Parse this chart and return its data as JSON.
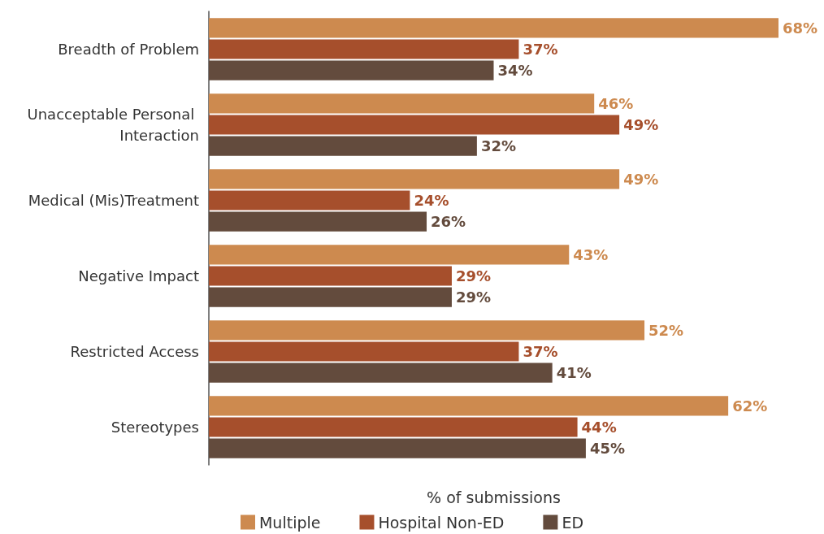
{
  "chart_data": {
    "type": "bar",
    "orientation": "horizontal",
    "xlabel": "% of submissions",
    "categories": [
      "Breadth of Problem",
      "Unacceptable Personal Interaction",
      "Medical (Mis)Treatment",
      "Negative Impact",
      "Restricted Access",
      "Stereotypes"
    ],
    "series": [
      {
        "name": "Multiple",
        "color": "#cd8a4f",
        "values": [
          68,
          46,
          49,
          43,
          52,
          62
        ],
        "value_labels": [
          "68%",
          "46%",
          "49%",
          "43%",
          "52%",
          "62%"
        ]
      },
      {
        "name": "Hospital Non-ED",
        "color": "#a64f2c",
        "values": [
          37,
          49,
          24,
          29,
          37,
          44
        ],
        "value_labels": [
          "37%",
          "49%",
          "24%",
          "29%",
          "37%",
          "44%"
        ]
      },
      {
        "name": "ED",
        "color": "#634b3d",
        "values": [
          34,
          32,
          26,
          29,
          41,
          45
        ],
        "value_labels": [
          "34%",
          "32%",
          "26%",
          "29%",
          "41%",
          "45%"
        ]
      }
    ],
    "tick_labels": "y",
    "grid": false,
    "legend": "bottom"
  }
}
